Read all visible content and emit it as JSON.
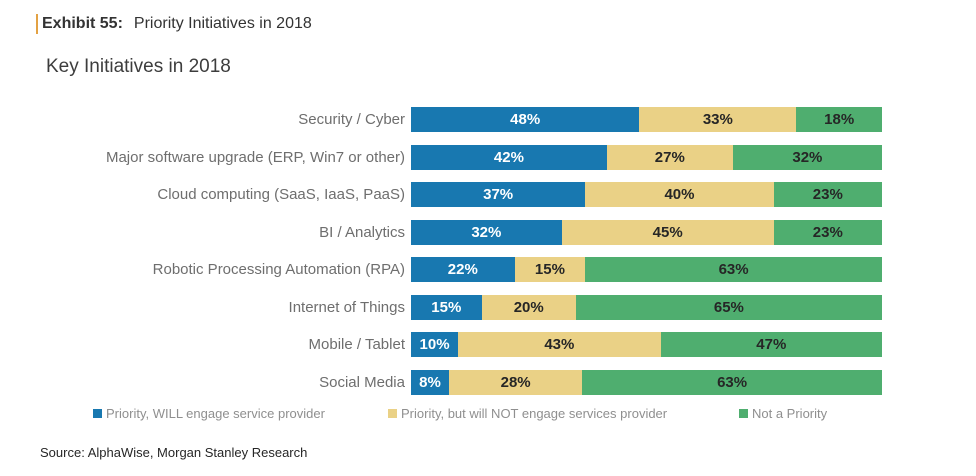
{
  "header": {
    "exhibit_label": "Exhibit 55:",
    "exhibit_title": "Priority Initiatives in 2018"
  },
  "chart_title": "Key Initiatives in 2018",
  "accent_color": "#E3A244",
  "chart_data": {
    "type": "bar",
    "orientation": "horizontal",
    "stacked": true,
    "percent_of_row_total": true,
    "grid": false,
    "axis_labels": "none",
    "legend_position": "bottom",
    "value_suffix": "%",
    "categories": [
      "Security / Cyber",
      "Major software upgrade (ERP, Win7 or other)",
      "Cloud computing (SaaS, IaaS, PaaS)",
      "BI / Analytics",
      "Robotic Processing Automation (RPA)",
      "Internet of Things",
      "Mobile / Tablet",
      "Social Media"
    ],
    "series": [
      {
        "name": "Priority, WILL engage service provider",
        "color": "#1878B0",
        "label_color": "#FFFFFF",
        "values": [
          48,
          42,
          37,
          32,
          22,
          15,
          10,
          8
        ]
      },
      {
        "name": "Priority, but will NOT engage services provider",
        "color": "#EAD186",
        "label_color": "#262626",
        "values": [
          33,
          27,
          40,
          45,
          15,
          20,
          43,
          28
        ]
      },
      {
        "name": "Not a Priority",
        "color": "#4FAE6F",
        "label_color": "#262626",
        "values": [
          18,
          32,
          23,
          23,
          63,
          65,
          47,
          63
        ]
      }
    ]
  },
  "source": "Source: AlphaWise, Morgan Stanley Research"
}
